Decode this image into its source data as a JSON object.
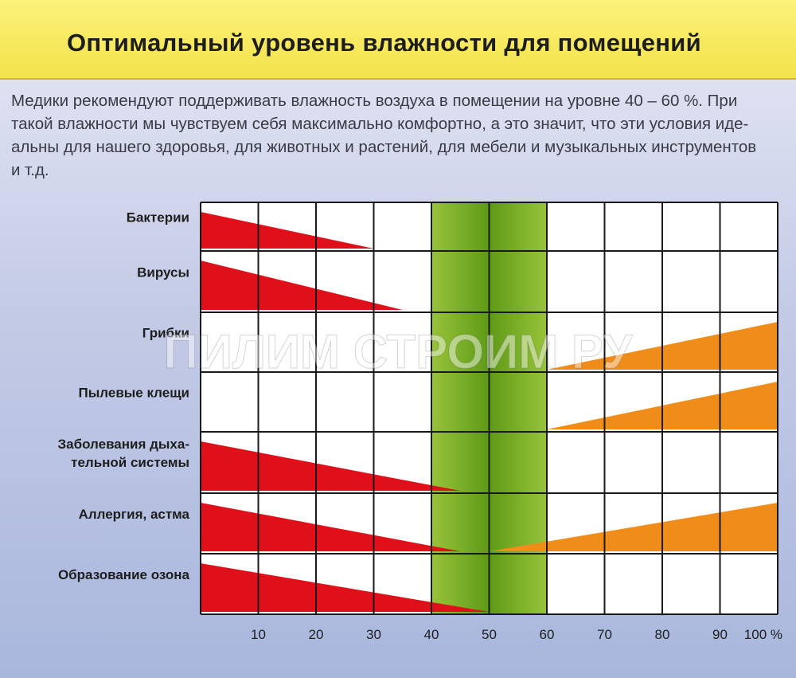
{
  "title": "Оптимальный уровень влажности для помещений",
  "intro_lines": [
    "Медики рекомендуют поддерживать влажность воздуха в помещении на уровне 40 – 60 %. При",
    "такой влажности мы чувствуем себя максимально комфортно, а это значит, что эти условия иде-",
    "альны для нашего здоровья, для животных и растений, для мебели и музыкальных инструментов",
    "и т.д."
  ],
  "watermark": "ПИЛИМ СТРОИМ РУ",
  "colors": {
    "low_risk": "#e0101a",
    "high_risk": "#f08c1a",
    "optimal_band": "#7bb22a",
    "grid": "#1a1a1a",
    "header": "#f6e85a"
  },
  "chart_data": {
    "type": "bar",
    "title": "Оптимальный уровень влажности для помещений",
    "x": [
      10,
      20,
      30,
      40,
      50,
      60,
      70,
      80,
      90,
      100
    ],
    "x_tick_labels": [
      "10",
      "20",
      "30",
      "40",
      "50",
      "60",
      "70",
      "80",
      "90",
      "100 %"
    ],
    "xlim": [
      0,
      100
    ],
    "optimal_range": [
      40,
      60
    ],
    "grid": true,
    "categories": [
      "Бактерии",
      "Вирусы",
      "Грибки",
      "Пылевые клещи",
      "Заболевания дыха-\nтельной системы",
      "Аллергия, астма",
      "Образование озона"
    ],
    "series": [
      {
        "name": "",
        "color": "#e0101a",
        "ranges": [
          [
            0,
            30
          ],
          [
            0,
            35
          ],
          null,
          null,
          [
            0,
            45
          ],
          [
            0,
            45
          ],
          [
            0,
            50
          ]
        ]
      },
      {
        "name": "",
        "color": "#f08c1a",
        "ranges": [
          null,
          null,
          [
            60,
            100
          ],
          [
            60,
            100
          ],
          null,
          [
            50,
            100
          ],
          null
        ]
      }
    ]
  }
}
